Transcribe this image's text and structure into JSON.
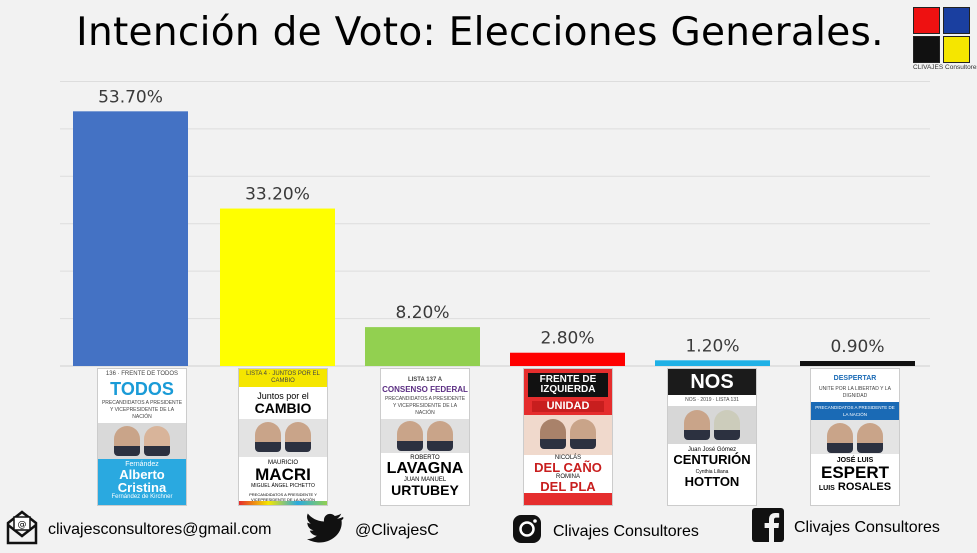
{
  "header": {
    "title": "Intención de Voto: Elecciones Generales.",
    "logo_text": "CLIVAJES Consultores",
    "logo_colors": [
      "#ee1111",
      "#1a3fa0",
      "#111111",
      "#f5e600"
    ]
  },
  "chart_data": {
    "type": "bar",
    "categories": [
      "Alberto Fernández / Cristina Fernández de Kirchner",
      "Mauricio Macri / Miguel Ángel Pichetto",
      "Roberto Lavagna / Juan Manuel Urtubey",
      "Nicolás del Caño / Romina del Plá",
      "Juan José Gómez Centurión / Cynthia Hotton",
      "José Luis Espert / Luis Rosales"
    ],
    "values": [
      53.7,
      33.2,
      8.2,
      2.8,
      1.2,
      0.9
    ],
    "data_labels": [
      "53.70%",
      "33.20%",
      "8.20%",
      "2.80%",
      "1.20%",
      "0.90%"
    ],
    "colors": [
      "#4472c4",
      "#ffff00",
      "#92d050",
      "#ff0000",
      "#1fb1e6",
      "#111111"
    ],
    "title": "Intención de Voto: Elecciones Generales.",
    "ylim": [
      0,
      60
    ],
    "grid": true,
    "legend": "none"
  },
  "posters": [
    {
      "header": "136 · FRENTE DE TODOS",
      "party": "TODOS",
      "subtitle": "PRECANDIDATOS A PRESIDENTE Y VICEPRESIDENTE DE LA NACIÓN",
      "name1": "Fernández",
      "name1_big": "Alberto",
      "name2_big": "Cristina",
      "name2": "Fernández de Kirchner"
    },
    {
      "header": "LISTA 4 · JUNTOS POR EL CAMBIO",
      "party": "Juntos por el",
      "party_big": "CAMBIO",
      "name1": "MAURICIO",
      "name1_big": "MACRI",
      "name2": "MIGUEL ÁNGEL PICHETTO",
      "footer": "PRECANDIDATOS A PRESIDENTE Y VICEPRESIDENTE DE LA NACIÓN"
    },
    {
      "header": "LISTA 137 A",
      "party": "CONSENSO FEDERAL",
      "subtitle": "PRECANDIDATOS A PRESIDENTE Y VICEPRESIDENTE DE LA NACIÓN",
      "name1": "ROBERTO",
      "name1_big": "LAVAGNA",
      "name2": "JUAN MANUEL",
      "name2_big": "URTUBEY"
    },
    {
      "header": "FRENTE DE IZQUIERDA",
      "party": "UNIDAD",
      "name1": "NICOLÁS",
      "name1_big": "DEL CAÑO",
      "name2": "ROMINA",
      "name2_big": "DEL PLA"
    },
    {
      "header": "NOS · 2019 · LISTA 131",
      "party": "NOS",
      "name1": "Juan José Gómez",
      "name1_big": "CENTURIÓN",
      "name2": "Cynthia Liliana",
      "name2_big": "HOTTON"
    },
    {
      "header": "DESPERTAR",
      "party": "UNITE POR LA LIBERTAD Y LA DIGNIDAD",
      "subtitle": "PRECANDIDATOS A PRESIDENTE DE LA NACIÓN",
      "name1": "JOSÉ LUIS",
      "name1_big": "ESPERT",
      "name2": "LUIS",
      "name2_big": "ROSALES"
    }
  ],
  "footer": {
    "email": "clivajesconsultores@gmail.com",
    "email_icon": "envelope-at-icon",
    "twitter": "@ClivajesC",
    "twitter_icon": "twitter-bird-icon",
    "instagram": "Clivajes Consultores",
    "instagram_icon": "instagram-icon",
    "facebook": "Clivajes Consultores",
    "facebook_icon": "facebook-icon"
  }
}
